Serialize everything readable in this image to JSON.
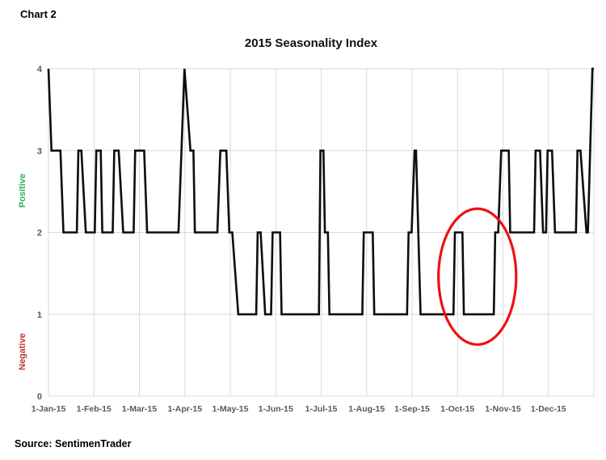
{
  "header": {
    "label": "Chart 2"
  },
  "footer": {
    "source": "Source: SentimenTrader"
  },
  "chart_data": {
    "type": "line",
    "title": "2015 Seasonality Index",
    "x_tick_labels": [
      "1-Jan-15",
      "1-Feb-15",
      "1-Mar-15",
      "1-Apr-15",
      "1-May-15",
      "1-Jun-15",
      "1-Jul-15",
      "1-Aug-15",
      "1-Sep-15",
      "1-Oct-15",
      "1-Nov-15",
      "1-Dec-15"
    ],
    "y_ticks": [
      0,
      1,
      2,
      3,
      4
    ],
    "ylim": [
      0,
      4
    ],
    "xlim_days": [
      0,
      365
    ],
    "grid": true,
    "colors": {
      "grid": "#d9d9d9",
      "tick_text": "#595959",
      "line": "#0d0d0d",
      "annotation": "#ee1111"
    },
    "axis_side_labels": [
      {
        "text": "Positive",
        "color": "#2eaf5e",
        "at_value": 2.5
      },
      {
        "text": "Negative",
        "color": "#c1392b",
        "at_value": 0.5
      }
    ],
    "series": [
      {
        "name": "2015 Seasonality Index",
        "color": "#0d0d0d",
        "points": [
          [
            0,
            4
          ],
          [
            2,
            3
          ],
          [
            8,
            3
          ],
          [
            10,
            2
          ],
          [
            19,
            2
          ],
          [
            20,
            3
          ],
          [
            22,
            3
          ],
          [
            25,
            2
          ],
          [
            31,
            2
          ],
          [
            32,
            3
          ],
          [
            35,
            3
          ],
          [
            36,
            2
          ],
          [
            43,
            2
          ],
          [
            44,
            3
          ],
          [
            47,
            3
          ],
          [
            50,
            2
          ],
          [
            57,
            2
          ],
          [
            58,
            3
          ],
          [
            64,
            3
          ],
          [
            66,
            2
          ],
          [
            87,
            2
          ],
          [
            91,
            4
          ],
          [
            95,
            3
          ],
          [
            97,
            3
          ],
          [
            98,
            2
          ],
          [
            113,
            2
          ],
          [
            115,
            3
          ],
          [
            119,
            3
          ],
          [
            121,
            2
          ],
          [
            123,
            2
          ],
          [
            127,
            1
          ],
          [
            139,
            1
          ],
          [
            140,
            2
          ],
          [
            142,
            2
          ],
          [
            145,
            1
          ],
          [
            149,
            1
          ],
          [
            150,
            2
          ],
          [
            155,
            2
          ],
          [
            156,
            1
          ],
          [
            181,
            1
          ],
          [
            182,
            3
          ],
          [
            184,
            3
          ],
          [
            185,
            2
          ],
          [
            187,
            2
          ],
          [
            188,
            1
          ],
          [
            210,
            1
          ],
          [
            211,
            2
          ],
          [
            217,
            2
          ],
          [
            218,
            1
          ],
          [
            240,
            1
          ],
          [
            241,
            2
          ],
          [
            243,
            2
          ],
          [
            245,
            3
          ],
          [
            246,
            3
          ],
          [
            249,
            1
          ],
          [
            271,
            1
          ],
          [
            272,
            2
          ],
          [
            277,
            2
          ],
          [
            278,
            1
          ],
          [
            298,
            1
          ],
          [
            299,
            2
          ],
          [
            301,
            2
          ],
          [
            303,
            3
          ],
          [
            308,
            3
          ],
          [
            309,
            2
          ],
          [
            325,
            2
          ],
          [
            326,
            3
          ],
          [
            329,
            3
          ],
          [
            331,
            2
          ],
          [
            333,
            2
          ],
          [
            334,
            3
          ],
          [
            337,
            3
          ],
          [
            339,
            2
          ],
          [
            353,
            2
          ],
          [
            354,
            3
          ],
          [
            356,
            3
          ],
          [
            360,
            2
          ],
          [
            361,
            2
          ],
          [
            364,
            4
          ],
          [
            365,
            4
          ]
        ]
      }
    ],
    "annotations": [
      {
        "shape": "ellipse",
        "center_day": 287,
        "center_value": 1.46,
        "radius_days": 26,
        "radius_value": 0.83,
        "color": "#ee1111",
        "note": "circled Oct-Nov dip"
      }
    ]
  }
}
